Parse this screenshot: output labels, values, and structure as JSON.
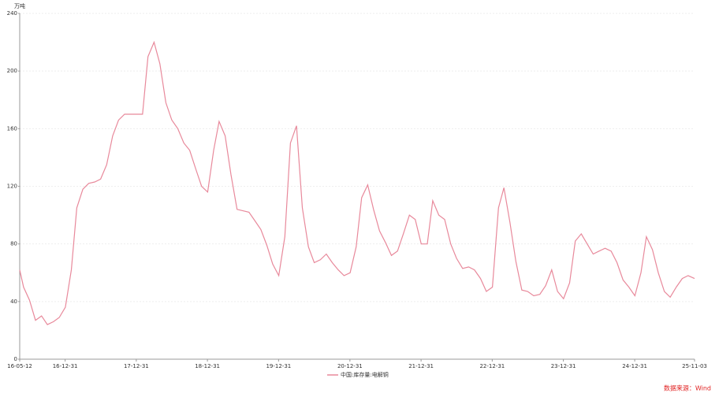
{
  "chart_data": {
    "type": "line",
    "y_unit": "万吨",
    "source": "数据来源：Wind",
    "xlim": [
      "16-05-12",
      "25-11-03"
    ],
    "xticks": [
      "16-05-12",
      "16-12-31",
      "17-12-31",
      "18-12-31",
      "19-12-31",
      "20-12-31",
      "21-12-31",
      "22-12-31",
      "23-12-31",
      "24-12-31",
      "25-11-03"
    ],
    "ylim": [
      0,
      240
    ],
    "yticks": [
      0,
      40,
      80,
      120,
      160,
      200,
      240
    ],
    "grid": true,
    "x": [
      "16-05-12",
      "16-06-01",
      "16-07-01",
      "16-08-01",
      "16-09-01",
      "16-10-01",
      "16-11-01",
      "16-12-01",
      "17-01-01",
      "17-02-01",
      "17-03-01",
      "17-04-01",
      "17-05-01",
      "17-06-01",
      "17-07-01",
      "17-08-01",
      "17-09-01",
      "17-10-01",
      "17-11-01",
      "17-12-01",
      "18-01-01",
      "18-02-01",
      "18-03-01",
      "18-04-01",
      "18-05-01",
      "18-06-01",
      "18-07-01",
      "18-08-01",
      "18-09-01",
      "18-10-01",
      "18-11-01",
      "18-12-01",
      "19-01-01",
      "19-02-01",
      "19-03-01",
      "19-04-01",
      "19-05-01",
      "19-06-01",
      "19-07-01",
      "19-08-01",
      "19-09-01",
      "19-10-01",
      "19-11-01",
      "19-12-01",
      "20-01-01",
      "20-02-01",
      "20-03-01",
      "20-04-01",
      "20-05-01",
      "20-06-01",
      "20-07-01",
      "20-08-01",
      "20-09-01",
      "20-10-01",
      "20-11-01",
      "20-12-01",
      "21-01-01",
      "21-02-01",
      "21-03-01",
      "21-04-01",
      "21-05-01",
      "21-06-01",
      "21-07-01",
      "21-08-01",
      "21-09-01",
      "21-10-01",
      "21-11-01",
      "21-12-01",
      "22-01-01",
      "22-02-01",
      "22-03-01",
      "22-04-01",
      "22-05-01",
      "22-06-01",
      "22-07-01",
      "22-08-01",
      "22-09-01",
      "22-10-01",
      "22-11-01",
      "22-12-01",
      "23-01-01",
      "23-02-01",
      "23-03-01",
      "23-04-01",
      "23-05-01",
      "23-06-01",
      "23-07-01",
      "23-08-01",
      "23-09-01",
      "23-10-01",
      "23-11-01",
      "23-12-01",
      "24-01-01",
      "24-02-01",
      "24-03-01",
      "24-04-01",
      "24-05-01",
      "24-06-01",
      "24-07-01",
      "24-08-01",
      "24-09-01",
      "24-10-01",
      "24-11-01",
      "24-12-01",
      "25-01-01",
      "25-02-01",
      "25-03-01",
      "25-04-01",
      "25-05-01",
      "25-06-01",
      "25-07-01",
      "25-08-01",
      "25-09-01",
      "25-10-01",
      "25-11-03"
    ],
    "series": [
      {
        "name": "中国:库存量:电解铜",
        "color": "#e8899b",
        "values": [
          62,
          50,
          41,
          27,
          30,
          24,
          26,
          29,
          36,
          62,
          105,
          118,
          122,
          123,
          125,
          135,
          155,
          166,
          170,
          170,
          170,
          170,
          210,
          220,
          205,
          178,
          166,
          160,
          150,
          145,
          132,
          120,
          116,
          145,
          165,
          155,
          128,
          104,
          103,
          102,
          96,
          90,
          79,
          66,
          58,
          85,
          150,
          162,
          105,
          78,
          67,
          69,
          73,
          67,
          62,
          58,
          60,
          78,
          112,
          121,
          104,
          89,
          81,
          72,
          75,
          87,
          100,
          97,
          80,
          80,
          110,
          100,
          97,
          80,
          70,
          63,
          64,
          62,
          56,
          47,
          50,
          105,
          119,
          95,
          68,
          48,
          47,
          44,
          45,
          51,
          62,
          47,
          42,
          53,
          82,
          87,
          80,
          73,
          75,
          77,
          75,
          67,
          55,
          50,
          44,
          60,
          85,
          76,
          60,
          47,
          43,
          50,
          56,
          58,
          56
        ]
      }
    ]
  }
}
